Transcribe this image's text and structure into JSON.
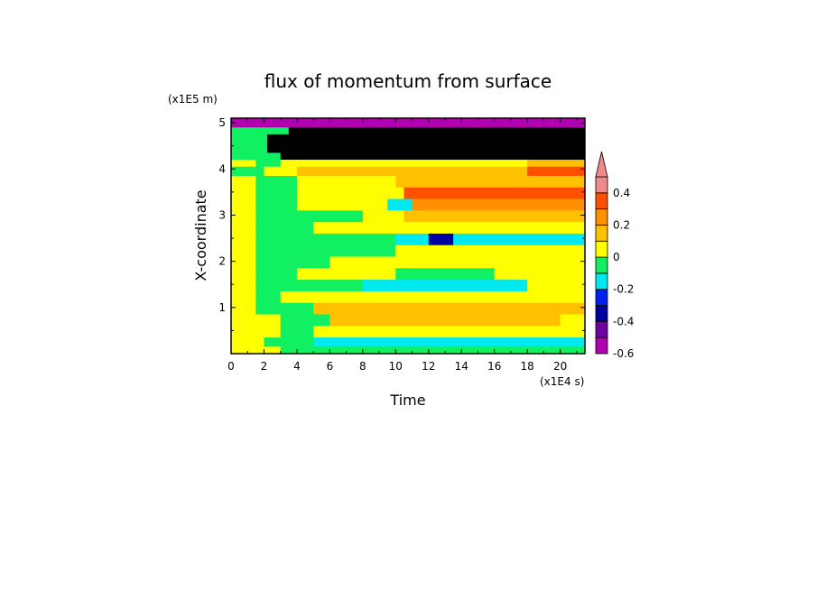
{
  "chart_data": {
    "type": "heatmap",
    "title": "flux of momentum from surface",
    "xlabel": "Time",
    "ylabel": "X-coordinate",
    "x_unit": "(x1E4 s)",
    "y_unit": "(x1E5 m)",
    "xlim": [
      0,
      21.5
    ],
    "ylim": [
      0,
      5.1
    ],
    "x_ticks": [
      0,
      2,
      4,
      6,
      8,
      10,
      12,
      14,
      16,
      18,
      20
    ],
    "y_ticks": [
      1,
      2,
      3,
      4,
      5
    ],
    "x_tick_labels": [
      "0",
      "2",
      "4",
      "6",
      "8",
      "10",
      "12",
      "14",
      "16",
      "18",
      "20"
    ],
    "y_tick_labels": [
      "1",
      "2",
      "3",
      "4",
      "5"
    ],
    "colorbar": {
      "levels": [
        -0.6,
        -0.5,
        -0.4,
        -0.3,
        -0.2,
        -0.1,
        0,
        0.1,
        0.2,
        0.3,
        0.4,
        0.5
      ],
      "colors": [
        "#b000b0",
        "#7000a0",
        "#0000a0",
        "#0020f0",
        "#00e8f0",
        "#10f060",
        "#ffff00",
        "#ffc000",
        "#ff9000",
        "#ff5000",
        "#f08a8a"
      ],
      "tick_values": [
        -0.6,
        -0.4,
        -0.2,
        0,
        0.2,
        0.4
      ],
      "tick_labels": [
        "-0.6",
        "-0.4",
        "-0.2",
        "0",
        "0.2",
        "0.4"
      ],
      "extend": "max"
    },
    "bands": [
      {
        "y": [
          4.9,
          5.1
        ],
        "segments": [
          [
            0,
            21.5,
            0
          ]
        ]
      },
      {
        "y": [
          4.75,
          4.9
        ],
        "segments": [
          [
            0,
            3.5,
            5
          ],
          [
            3.5,
            21.5,
            -2
          ]
        ]
      },
      {
        "y": [
          4.55,
          4.75
        ],
        "segments": [
          [
            0,
            2.2,
            5
          ],
          [
            2.2,
            4,
            -1
          ],
          [
            4,
            21.5,
            -3
          ]
        ]
      },
      {
        "y": [
          4.35,
          4.55
        ],
        "segments": [
          [
            0,
            2.2,
            5
          ],
          [
            2.2,
            4,
            -1
          ],
          [
            4,
            21.5,
            -3
          ]
        ]
      },
      {
        "y": [
          4.2,
          4.35
        ],
        "segments": [
          [
            0,
            3,
            5
          ],
          [
            3,
            21.5,
            -1
          ]
        ]
      },
      {
        "y": [
          4.05,
          4.2
        ],
        "segments": [
          [
            0,
            1.5,
            6
          ],
          [
            1.5,
            3,
            5
          ],
          [
            3,
            18,
            6
          ],
          [
            18,
            21.5,
            7
          ]
        ]
      },
      {
        "y": [
          3.85,
          4.05
        ],
        "segments": [
          [
            0,
            2,
            5
          ],
          [
            2,
            4,
            6
          ],
          [
            4,
            10,
            7
          ],
          [
            10,
            18,
            7
          ],
          [
            18,
            21.5,
            9
          ]
        ]
      },
      {
        "y": [
          3.6,
          3.85
        ],
        "segments": [
          [
            0,
            1.5,
            6
          ],
          [
            1.5,
            4,
            5
          ],
          [
            4,
            10,
            6
          ],
          [
            10,
            21.5,
            7
          ]
        ]
      },
      {
        "y": [
          3.35,
          3.6
        ],
        "segments": [
          [
            0,
            1.5,
            6
          ],
          [
            1.5,
            4,
            5
          ],
          [
            4,
            10.5,
            6
          ],
          [
            10.5,
            21.5,
            9
          ]
        ]
      },
      {
        "y": [
          3.1,
          3.35
        ],
        "segments": [
          [
            0,
            1.5,
            6
          ],
          [
            1.5,
            4,
            5
          ],
          [
            4,
            9.5,
            6
          ],
          [
            9.5,
            11,
            4
          ],
          [
            11,
            21.5,
            8
          ]
        ]
      },
      {
        "y": [
          2.85,
          3.1
        ],
        "segments": [
          [
            0,
            1.5,
            6
          ],
          [
            1.5,
            8,
            5
          ],
          [
            8,
            10.5,
            6
          ],
          [
            10.5,
            21.5,
            7
          ]
        ]
      },
      {
        "y": [
          2.6,
          2.85
        ],
        "segments": [
          [
            0,
            1.5,
            6
          ],
          [
            1.5,
            5,
            5
          ],
          [
            5,
            11,
            6
          ],
          [
            11,
            21.5,
            6
          ]
        ]
      },
      {
        "y": [
          2.35,
          2.6
        ],
        "segments": [
          [
            0,
            1.5,
            6
          ],
          [
            1.5,
            10,
            5
          ],
          [
            10,
            12,
            4
          ],
          [
            12,
            13.5,
            2
          ],
          [
            13.5,
            21.5,
            4
          ]
        ]
      },
      {
        "y": [
          2.1,
          2.35
        ],
        "segments": [
          [
            0,
            1.5,
            6
          ],
          [
            1.5,
            10,
            5
          ],
          [
            10,
            21.5,
            6
          ]
        ]
      },
      {
        "y": [
          1.85,
          2.1
        ],
        "segments": [
          [
            0,
            1.5,
            6
          ],
          [
            1.5,
            6,
            5
          ],
          [
            6,
            21.5,
            6
          ]
        ]
      },
      {
        "y": [
          1.6,
          1.85
        ],
        "segments": [
          [
            0,
            1.5,
            6
          ],
          [
            1.5,
            4,
            5
          ],
          [
            4,
            10,
            6
          ],
          [
            10,
            16,
            5
          ],
          [
            16,
            21.5,
            6
          ]
        ]
      },
      {
        "y": [
          1.35,
          1.6
        ],
        "segments": [
          [
            0,
            1.5,
            6
          ],
          [
            1.5,
            8,
            5
          ],
          [
            8,
            18,
            4
          ],
          [
            18,
            21.5,
            6
          ]
        ]
      },
      {
        "y": [
          1.1,
          1.35
        ],
        "segments": [
          [
            0,
            1.5,
            6
          ],
          [
            1.5,
            3,
            5
          ],
          [
            3,
            21.5,
            6
          ]
        ]
      },
      {
        "y": [
          0.85,
          1.1
        ],
        "segments": [
          [
            0,
            1.5,
            6
          ],
          [
            1.5,
            5,
            5
          ],
          [
            5,
            21.5,
            7
          ]
        ]
      },
      {
        "y": [
          0.6,
          0.85
        ],
        "segments": [
          [
            0,
            1.5,
            6
          ],
          [
            1.5,
            3,
            6
          ],
          [
            3,
            6,
            5
          ],
          [
            6,
            20,
            7
          ],
          [
            20,
            21.5,
            6
          ]
        ]
      },
      {
        "y": [
          0.35,
          0.6
        ],
        "segments": [
          [
            0,
            1.5,
            6
          ],
          [
            1.5,
            3,
            6
          ],
          [
            3,
            5,
            5
          ],
          [
            5,
            21.5,
            6
          ]
        ]
      },
      {
        "y": [
          0.15,
          0.35
        ],
        "segments": [
          [
            0,
            2,
            6
          ],
          [
            2,
            5,
            5
          ],
          [
            5,
            21.5,
            4
          ]
        ]
      },
      {
        "y": [
          0,
          0.15
        ],
        "segments": [
          [
            0,
            3,
            6
          ],
          [
            3,
            21.5,
            5
          ]
        ]
      }
    ]
  }
}
